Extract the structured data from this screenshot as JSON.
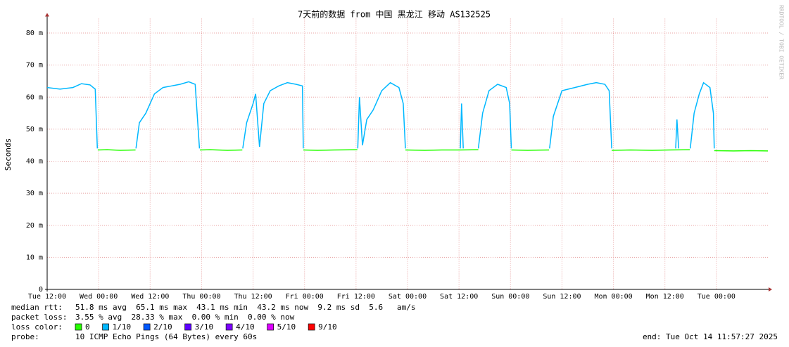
{
  "chart_data": {
    "type": "line",
    "title": "7天前的数据 from 中国 黑龙江 移动 AS132525",
    "ylabel": "Seconds",
    "watermark": "RRDTOOL / TOBI OETIKER",
    "xlim": [
      0,
      168
    ],
    "ylim": [
      0,
      84.5
    ],
    "xticks": [
      {
        "value": 0,
        "label": "Tue 12:00"
      },
      {
        "value": 12,
        "label": "Wed 00:00"
      },
      {
        "value": 24,
        "label": "Wed 12:00"
      },
      {
        "value": 36,
        "label": "Thu 00:00"
      },
      {
        "value": 48,
        "label": "Thu 12:00"
      },
      {
        "value": 60,
        "label": "Fri 00:00"
      },
      {
        "value": 72,
        "label": "Fri 12:00"
      },
      {
        "value": 84,
        "label": "Sat 00:00"
      },
      {
        "value": 96,
        "label": "Sat 12:00"
      },
      {
        "value": 108,
        "label": "Sun 00:00"
      },
      {
        "value": 120,
        "label": "Sun 12:00"
      },
      {
        "value": 132,
        "label": "Mon 00:00"
      },
      {
        "value": 144,
        "label": "Mon 12:00"
      },
      {
        "value": 156,
        "label": "Tue 00:00"
      }
    ],
    "yticks": [
      0,
      {
        "value": 10,
        "label": "10 m"
      },
      {
        "value": 20,
        "label": "20 m"
      },
      {
        "value": 30,
        "label": "30 m"
      },
      {
        "value": 40,
        "label": "40 m"
      },
      {
        "value": 50,
        "label": "50 m"
      },
      {
        "value": 60,
        "label": "60 m"
      },
      {
        "value": 70,
        "label": "70 m"
      },
      {
        "value": 80,
        "label": "80 m"
      }
    ],
    "grid": true,
    "legend_label": "loss color:",
    "series": [
      {
        "name": "0",
        "color": "#26ff00",
        "x": [
          11.8,
          14,
          17,
          20.6,
          null,
          35.6,
          38,
          42,
          45.5,
          null,
          59.7,
          63,
          67,
          72.3,
          null,
          83.5,
          88,
          92,
          96.3,
          100.5,
          null,
          108.2,
          112,
          117,
          null,
          131.6,
          136,
          141,
          145,
          149.8,
          null,
          155.5,
          160,
          164,
          168
        ],
        "values": [
          43.5,
          43.6,
          43.4,
          43.5,
          null,
          43.5,
          43.6,
          43.4,
          43.5,
          null,
          43.5,
          43.4,
          43.5,
          43.6,
          null,
          43.5,
          43.4,
          43.5,
          43.5,
          43.6,
          null,
          43.5,
          43.4,
          43.5,
          null,
          43.4,
          43.5,
          43.4,
          43.5,
          43.6,
          null,
          43.3,
          43.2,
          43.3,
          43.2
        ]
      },
      {
        "name": "1/10",
        "color": "#00b8ff",
        "x": [
          0,
          3,
          6,
          8,
          10,
          11.2,
          11.7,
          null,
          20.7,
          21.5,
          23,
          25,
          27,
          29,
          31,
          33,
          34.5,
          35.5,
          null,
          45.6,
          46.5,
          48,
          48.6,
          49.5,
          50.5,
          52,
          54,
          56,
          58,
          59.5,
          59.7,
          null,
          72.4,
          72.8,
          73.5,
          74.5,
          76,
          78,
          80,
          82,
          83,
          83.5,
          null,
          96.3,
          96.6,
          97,
          null,
          100.5,
          101.5,
          103,
          105,
          107,
          107.8,
          108.2,
          null,
          117.1,
          118,
          120,
          123,
          126,
          128,
          130,
          131,
          131.6,
          null,
          146.5,
          146.8,
          147.2,
          null,
          149.9,
          150.8,
          152,
          153,
          154.5,
          155.3,
          155.5
        ],
        "values": [
          63,
          62.5,
          63,
          64.2,
          63.8,
          62.5,
          44,
          null,
          44,
          52,
          55,
          61,
          63,
          63.5,
          64,
          64.8,
          64,
          44,
          null,
          44,
          52,
          58,
          61,
          44.5,
          58,
          62,
          63.5,
          64.5,
          64,
          63.5,
          44,
          null,
          44,
          60,
          45,
          53,
          56,
          62,
          64.5,
          63,
          58,
          44,
          null,
          44,
          58,
          44,
          null,
          44,
          55,
          62,
          64,
          63,
          58,
          44,
          null,
          44,
          54,
          62,
          63,
          64,
          64.5,
          64,
          62,
          44,
          null,
          44,
          53,
          44,
          null,
          44,
          55,
          61,
          64.5,
          63,
          55,
          44
        ]
      },
      {
        "name": "2/10",
        "color": "#0059ff",
        "x": [],
        "values": []
      },
      {
        "name": "3/10",
        "color": "#5e00ff",
        "x": [],
        "values": []
      },
      {
        "name": "4/10",
        "color": "#7e00ff",
        "x": [],
        "values": []
      },
      {
        "name": "5/10",
        "color": "#dd00ff",
        "x": [],
        "values": []
      },
      {
        "name": "9/10",
        "color": "#ff0000",
        "x": [],
        "values": []
      }
    ],
    "stats": [
      {
        "label": "median rtt:",
        "text": "51.8 ms avg  65.1 ms max  43.1 ms min  43.2 ms now  9.2 ms sd  5.6   am/s"
      },
      {
        "label": "packet loss:",
        "text": "3.55 % avg  28.33 % max  0.00 % min  0.00 % now"
      }
    ],
    "probe_label": "probe:",
    "probe_text": "10 ICMP Echo Pings (64 Bytes) every 60s",
    "end_text": "end: Tue Oct 14 11:57:27 2025"
  }
}
